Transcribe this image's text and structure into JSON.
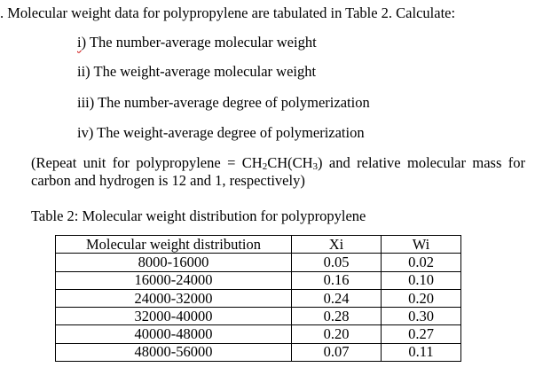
{
  "question": {
    "text": ". Molecular weight data for polypropylene are tabulated in Table 2. Calculate:",
    "items": [
      {
        "numeral": "i",
        "rest": ") The number-average molecular weight"
      },
      {
        "numeral": "ii",
        "rest": ") The weight-average molecular weight"
      },
      {
        "numeral": "iii",
        "rest": ") The number-average degree of polymerization"
      },
      {
        "numeral": "iv",
        "rest": ") The weight-average degree of polymerization"
      }
    ]
  },
  "note": {
    "line1": {
      "pre": "(Repeat unit for polypropylene = CH",
      "sub_a": "2",
      "mid": "CH(CH",
      "sub_b": "3",
      "post": ") and relative molecular mass for"
    },
    "line2": "carbon and hydrogen is 12 and 1, respectively)"
  },
  "table": {
    "caption": "Table 2: Molecular weight distribution for polypropylene",
    "headers": [
      "Molecular weight distribution",
      "Xi",
      "Wi"
    ],
    "rows": [
      [
        "8000-16000",
        "0.05",
        "0.02"
      ],
      [
        "16000-24000",
        "0.16",
        "0.10"
      ],
      [
        "24000-32000",
        "0.24",
        "0.20"
      ],
      [
        "32000-40000",
        "0.28",
        "0.30"
      ],
      [
        "40000-48000",
        "0.20",
        "0.27"
      ],
      [
        "48000-56000",
        "0.07",
        "0.11"
      ]
    ]
  },
  "colors": {
    "text": "#000000",
    "background": "#ffffff",
    "spellcheck_underline": "#cc0000"
  }
}
